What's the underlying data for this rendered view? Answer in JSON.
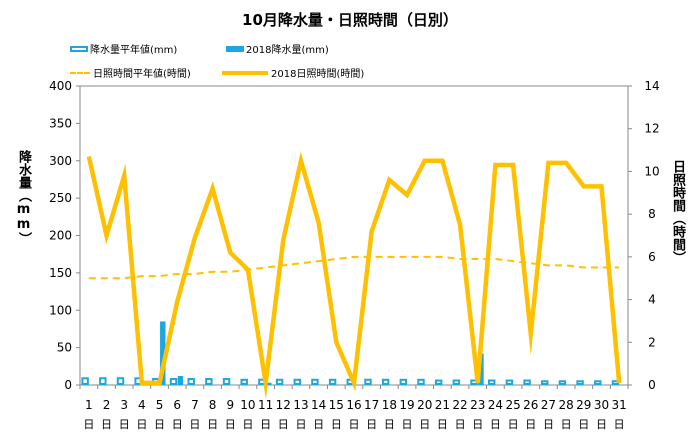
{
  "title": "10月降水量・日照時間（日別）",
  "legend": {
    "precip_normal": "降水量平年値(mm)",
    "precip_2018": "2018降水量(mm)",
    "sun_normal": "日照時間平年値(時間)",
    "sun_2018": "2018日照時間(時間)"
  },
  "axis_left_label": "降水量（mm）",
  "axis_right_label": "日照時間（時間）",
  "day_unit": "日",
  "colors": {
    "precip": "#1ea6e0",
    "sun": "#ffc000"
  },
  "chart_data": {
    "type": "bar+line",
    "categories": [
      "1",
      "2",
      "3",
      "4",
      "5",
      "6",
      "7",
      "8",
      "9",
      "10",
      "11",
      "12",
      "13",
      "14",
      "15",
      "16",
      "17",
      "18",
      "19",
      "20",
      "21",
      "22",
      "23",
      "24",
      "25",
      "26",
      "27",
      "28",
      "29",
      "30",
      "31"
    ],
    "y_left": {
      "label": "降水量（mm）",
      "ylim": [
        0,
        400
      ],
      "ticks": [
        "0",
        "50",
        "100",
        "150",
        "200",
        "250",
        "300",
        "350",
        "400"
      ]
    },
    "y_right": {
      "label": "日照時間（時間）",
      "ylim": [
        0,
        14
      ],
      "ticks": [
        "0",
        "2",
        "4",
        "6",
        "8",
        "10",
        "12",
        "14"
      ]
    },
    "grid": false,
    "series": [
      {
        "name": "降水量平年値(mm)",
        "type": "bar",
        "style": "outline",
        "axis": "left",
        "values": [
          9,
          9,
          9,
          9,
          8,
          8,
          8,
          8,
          8,
          7,
          7,
          7,
          7,
          7,
          7,
          7,
          7,
          7,
          7,
          7,
          6,
          6,
          6,
          6,
          6,
          6,
          5,
          5,
          5,
          5,
          5
        ]
      },
      {
        "name": "2018降水量(mm)",
        "type": "bar",
        "style": "filled",
        "axis": "left",
        "values": [
          0,
          0,
          0,
          0,
          85,
          12,
          0,
          0,
          0,
          0,
          3,
          0,
          0,
          0,
          0,
          0,
          0,
          0,
          0,
          0,
          0,
          0,
          42,
          0,
          0,
          0,
          0,
          0,
          0,
          0,
          0
        ]
      },
      {
        "name": "日照時間平年値(時間)",
        "type": "line",
        "style": "dashed",
        "axis": "right",
        "values": [
          5.0,
          5.0,
          5.0,
          5.1,
          5.1,
          5.2,
          5.2,
          5.3,
          5.3,
          5.4,
          5.5,
          5.6,
          5.7,
          5.8,
          5.9,
          6.0,
          6.0,
          6.0,
          6.0,
          6.0,
          6.0,
          5.9,
          5.9,
          5.9,
          5.8,
          5.7,
          5.6,
          5.6,
          5.5,
          5.5,
          5.5
        ]
      },
      {
        "name": "2018日照時間(時間)",
        "type": "line",
        "style": "solid",
        "axis": "right",
        "values": [
          10.7,
          7.0,
          9.8,
          0.1,
          0.1,
          3.9,
          6.9,
          9.2,
          6.2,
          5.4,
          0.1,
          6.8,
          10.5,
          7.6,
          2.0,
          0.1,
          7.2,
          9.6,
          8.9,
          10.5,
          10.5,
          7.5,
          0.1,
          10.3,
          10.3,
          2.4,
          10.4,
          10.4,
          9.3,
          9.3,
          0.1
        ]
      }
    ]
  }
}
